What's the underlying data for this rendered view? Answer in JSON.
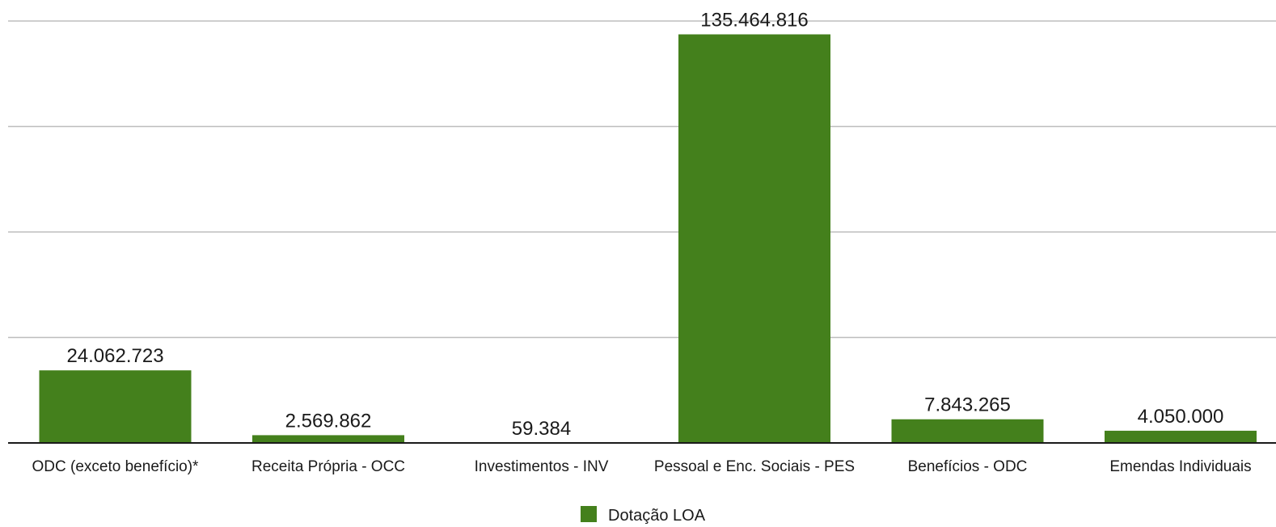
{
  "chart_data": {
    "type": "bar",
    "title": "",
    "xlabel": "",
    "ylabel": "",
    "categories": [
      "ODC (exceto benefício)*",
      "Receita Própria - OCC",
      "Investimentos - INV",
      "Pessoal e Enc. Sociais - PES",
      "Benefícios - ODC",
      "Emendas Individuais"
    ],
    "series": [
      {
        "name": "Dotação LOA",
        "values": [
          24062723,
          2569862,
          59384,
          135464816,
          7843265,
          4050000
        ],
        "labels": [
          "24.062.723",
          "2.569.862",
          "59.384",
          "135.464.816",
          "7.843.265",
          "4.050.000"
        ],
        "color": "#44801c"
      }
    ],
    "ylim": [
      0,
      140000000
    ],
    "grid": true,
    "legend_position": "bottom-center"
  }
}
